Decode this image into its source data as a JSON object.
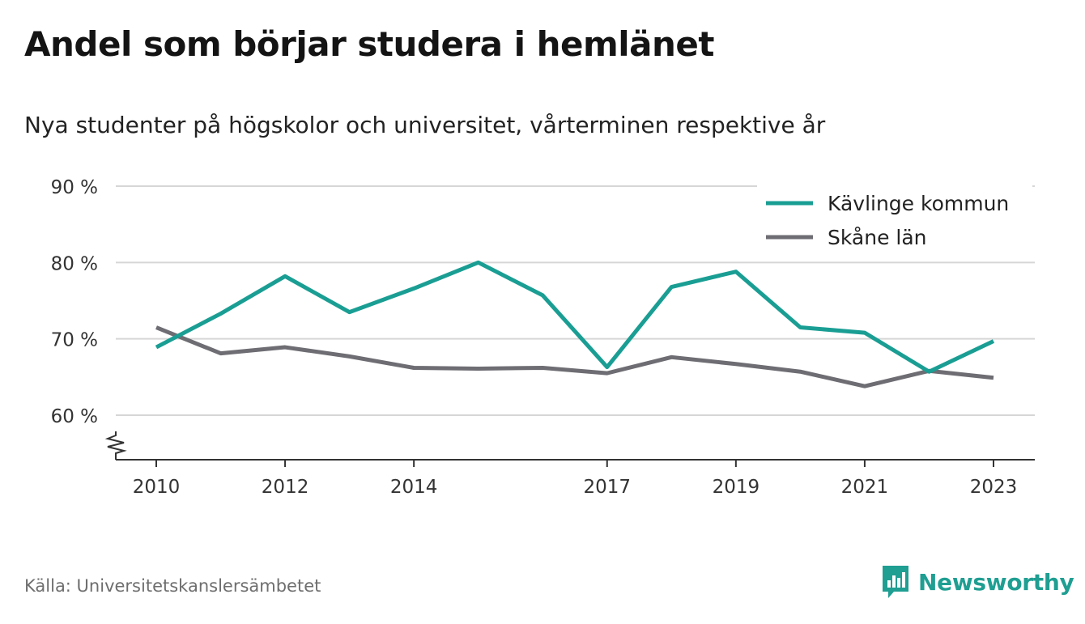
{
  "title": "Andel som börjar studera i hemlänet",
  "subtitle": "Nya studenter på högskolor och universitet, vårterminen respektive år",
  "source": "Källa: Universitetskanslersämbetet",
  "brand": "Newsworthy",
  "colors": {
    "kavlinge": "#1a9e94",
    "skane": "#6d6d73",
    "brand": "#1f9e92",
    "grid": "#d6d6d6"
  },
  "chart_data": {
    "type": "line",
    "ylim": [
      55,
      90
    ],
    "yticks": [
      60,
      70,
      80,
      90
    ],
    "ytick_labels": [
      "60 %",
      "70 %",
      "80 %",
      "90 %"
    ],
    "xticks": [
      2010,
      2012,
      2014,
      2017,
      2019,
      2021,
      2023
    ],
    "xtick_labels": [
      "2010",
      "2012",
      "2014",
      "2017",
      "2019",
      "2021",
      "2023"
    ],
    "x": [
      2010,
      2011,
      2012,
      2013,
      2014,
      2015,
      2016,
      2017,
      2018,
      2019,
      2020,
      2021,
      2022,
      2023
    ],
    "axis_break": true,
    "legend_position": "top-right",
    "grid": true,
    "series": [
      {
        "name": "Kävlinge kommun",
        "color_key": "kavlinge",
        "values": [
          68.9,
          73.3,
          78.2,
          73.5,
          76.6,
          80.0,
          75.7,
          66.3,
          76.8,
          78.8,
          71.5,
          70.8,
          65.7,
          69.7
        ]
      },
      {
        "name": "Skåne län",
        "color_key": "skane",
        "values": [
          71.5,
          68.1,
          68.9,
          67.7,
          66.2,
          66.1,
          66.2,
          65.5,
          67.6,
          66.7,
          65.7,
          63.8,
          65.8,
          64.9
        ]
      }
    ]
  }
}
